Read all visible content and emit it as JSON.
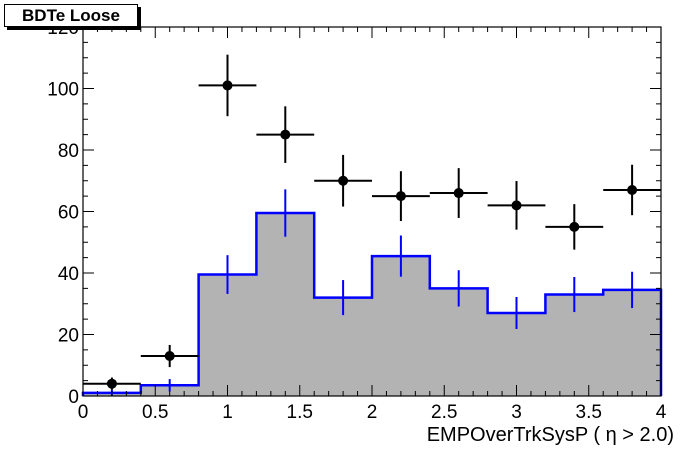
{
  "chart_data": {
    "type": "histogram",
    "title": "BDTe Loose",
    "xlabel": "EMPOverTrkSysP ( η > 2.0)",
    "ylabel": "",
    "xlim": [
      0,
      4
    ],
    "ylim": [
      0,
      120
    ],
    "xticks": [
      "0",
      "0.5",
      "1",
      "1.5",
      "2",
      "2.5",
      "3",
      "3.5",
      "4"
    ],
    "yticks": [
      "0",
      "20",
      "40",
      "60",
      "80",
      "100",
      "120"
    ],
    "bin_edges": [
      0,
      0.4,
      0.8,
      1.2,
      1.6,
      2.0,
      2.4,
      2.8,
      3.2,
      3.6,
      4.0
    ],
    "series": [
      {
        "kind": "filled-histogram",
        "color": "#0000ff",
        "fill": "#b3b3b3",
        "values": [
          1,
          3.5,
          39.5,
          59.5,
          32,
          45.5,
          35,
          27,
          33,
          34.5
        ],
        "errors": [
          1,
          2,
          6.3,
          7.7,
          5.7,
          6.7,
          5.9,
          5.2,
          5.7,
          5.9
        ]
      },
      {
        "kind": "points",
        "color": "#000000",
        "x": [
          0.2,
          0.6,
          1.0,
          1.4,
          1.8,
          2.2,
          2.6,
          3.0,
          3.4,
          3.8
        ],
        "values": [
          4,
          13,
          101,
          85,
          70,
          65,
          66,
          62,
          55,
          67
        ],
        "errors": [
          2,
          3.6,
          10,
          9.2,
          8.4,
          8.1,
          8.1,
          7.9,
          7.4,
          8.2
        ]
      }
    ],
    "grid": false,
    "legend": "top-left"
  }
}
